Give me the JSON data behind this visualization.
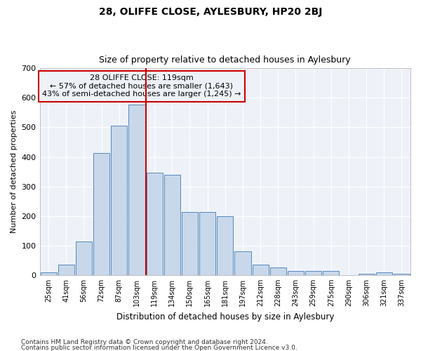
{
  "title": "28, OLIFFE CLOSE, AYLESBURY, HP20 2BJ",
  "subtitle": "Size of property relative to detached houses in Aylesbury",
  "xlabel": "Distribution of detached houses by size in Aylesbury",
  "ylabel": "Number of detached properties",
  "categories": [
    "25sqm",
    "41sqm",
    "56sqm",
    "72sqm",
    "87sqm",
    "103sqm",
    "119sqm",
    "134sqm",
    "150sqm",
    "165sqm",
    "181sqm",
    "197sqm",
    "212sqm",
    "228sqm",
    "243sqm",
    "259sqm",
    "275sqm",
    "290sqm",
    "306sqm",
    "321sqm",
    "337sqm"
  ],
  "values": [
    8,
    35,
    113,
    413,
    505,
    578,
    347,
    340,
    213,
    213,
    200,
    80,
    35,
    25,
    13,
    13,
    13,
    0,
    5,
    10,
    5
  ],
  "bar_color": "#c8d8ea",
  "bar_edge_color": "#5588bb",
  "highlight_line_color": "#cc0000",
  "highlight_line_index": 6,
  "annotation_text": "28 OLIFFE CLOSE: 119sqm\n← 57% of detached houses are smaller (1,643)\n43% of semi-detached houses are larger (1,245) →",
  "annotation_box_edge": "#cc0000",
  "ylim": [
    0,
    700
  ],
  "yticks": [
    0,
    100,
    200,
    300,
    400,
    500,
    600,
    700
  ],
  "figure_bg": "#ffffff",
  "plot_bg": "#eef2f8",
  "grid_color": "#ffffff",
  "footer1": "Contains HM Land Registry data © Crown copyright and database right 2024.",
  "footer2": "Contains public sector information licensed under the Open Government Licence v3.0."
}
